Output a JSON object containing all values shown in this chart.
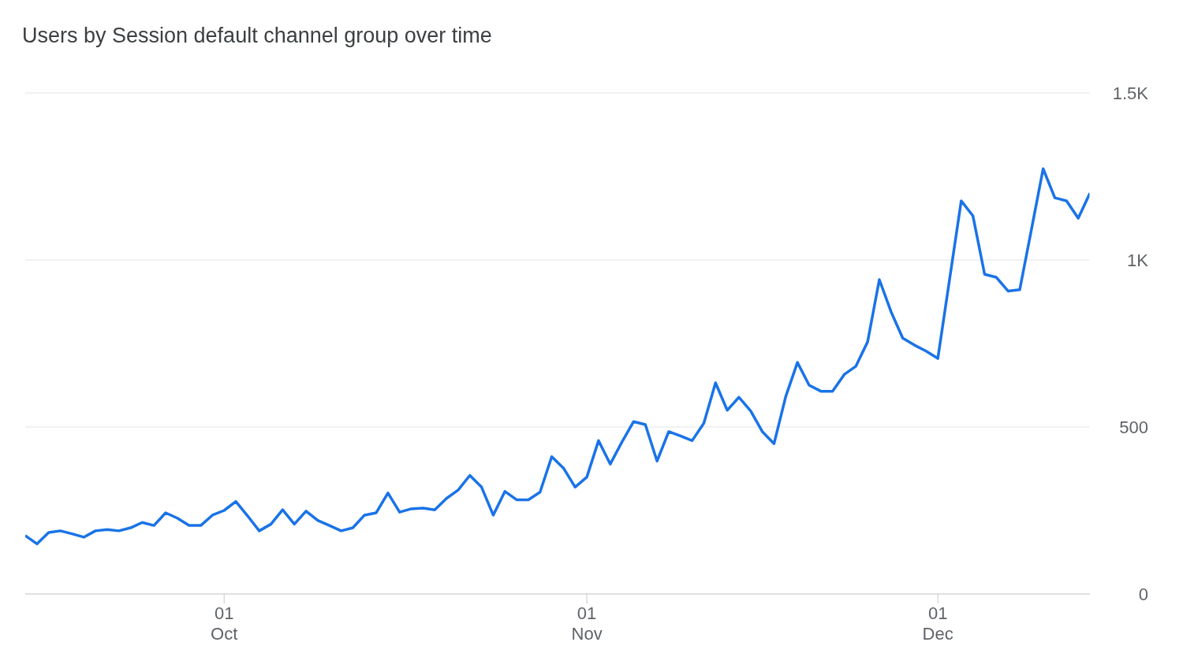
{
  "chart_data": {
    "type": "line",
    "title": "Users by Session default channel group over time",
    "x": [
      "--09-14",
      "--09-15",
      "--09-16",
      "--09-17",
      "--09-18",
      "--09-19",
      "--09-20",
      "--09-21",
      "--09-22",
      "--09-23",
      "--09-24",
      "--09-25",
      "--09-26",
      "--09-27",
      "--09-28",
      "--09-29",
      "--09-30",
      "--10-01",
      "--10-02",
      "--10-03",
      "--10-04",
      "--10-05",
      "--10-06",
      "--10-07",
      "--10-08",
      "--10-09",
      "--10-10",
      "--10-11",
      "--10-12",
      "--10-13",
      "--10-14",
      "--10-15",
      "--10-16",
      "--10-17",
      "--10-18",
      "--10-19",
      "--10-20",
      "--10-21",
      "--10-22",
      "--10-23",
      "--10-24",
      "--10-25",
      "--10-26",
      "--10-27",
      "--10-28",
      "--10-29",
      "--10-30",
      "--10-31",
      "--11-01",
      "--11-02",
      "--11-03",
      "--11-04",
      "--11-05",
      "--11-06",
      "--11-07",
      "--11-08",
      "--11-09",
      "--11-10",
      "--11-11",
      "--11-12",
      "--11-13",
      "--11-14",
      "--11-15",
      "--11-16",
      "--11-17",
      "--11-18",
      "--11-19",
      "--11-20",
      "--11-21",
      "--11-22",
      "--11-23",
      "--11-24",
      "--11-25",
      "--11-26",
      "--11-27",
      "--11-28",
      "--11-29",
      "--11-30",
      "--12-01",
      "--12-02",
      "--12-03",
      "--12-04",
      "--12-05",
      "--12-06",
      "--12-07",
      "--12-08",
      "--12-09",
      "--12-10",
      "--12-11",
      "--12-12",
      "--12-13",
      "--12-14"
    ],
    "series": [
      {
        "color": "#1a73e8",
        "values": [
          175,
          150,
          184,
          189,
          180,
          170,
          189,
          193,
          189,
          198,
          214,
          205,
          243,
          227,
          205,
          205,
          236,
          250,
          277,
          234,
          189,
          209,
          252,
          209,
          248,
          220,
          205,
          189,
          198,
          236,
          243,
          302,
          245,
          255,
          257,
          252,
          286,
          311,
          355,
          320,
          236,
          307,
          282,
          282,
          305,
          411,
          377,
          320,
          350,
          459,
          389,
          455,
          516,
          507,
          398,
          486,
          473,
          459,
          511,
          632,
          550,
          589,
          548,
          486,
          450,
          591,
          693,
          625,
          607,
          607,
          657,
          682,
          755,
          941,
          845,
          766,
          745,
          727,
          705,
          941,
          1177,
          1132,
          957,
          948,
          907,
          911,
          1091,
          1273,
          1186,
          1177,
          1125,
          1200
        ]
      }
    ],
    "xlim": [
      "--09-14",
      "--12-14"
    ],
    "xticks": [
      {
        "value": "--10-01",
        "label": "01\nOct"
      },
      {
        "value": "--11-01",
        "label": "01\nNov"
      },
      {
        "value": "--12-01",
        "label": "01\nDec"
      }
    ],
    "ylim": [
      0,
      1500
    ],
    "yticks": [
      0,
      500,
      {
        "value": 1000,
        "label": "1K"
      },
      {
        "value": 1500,
        "label": "1.5K"
      }
    ],
    "grid": "y",
    "marker": "none",
    "line_style": "solid"
  }
}
